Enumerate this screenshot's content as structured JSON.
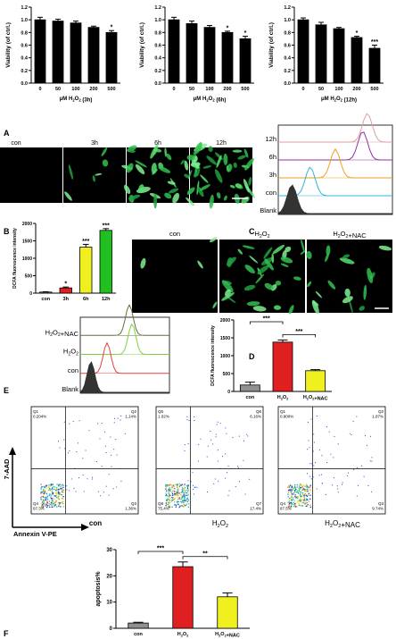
{
  "panel_labels": [
    "A",
    "B",
    "C",
    "D",
    "E",
    "F"
  ],
  "viability_charts": [
    {
      "ylabel": "Viability (of ctrl.)",
      "xlabel": "μM H2O2 (3h)",
      "categories": [
        "0",
        "50",
        "100",
        "200",
        "500"
      ],
      "values": [
        1.0,
        0.98,
        0.95,
        0.88,
        0.8
      ],
      "errors": [
        0.04,
        0.03,
        0.03,
        0.02,
        0.03
      ],
      "sig": [
        "",
        "",
        "",
        "",
        "*"
      ],
      "yticks": [
        "0.0",
        "0.2",
        "0.4",
        "0.6",
        "0.8",
        "1.0",
        "1.2"
      ],
      "ylim": [
        0,
        1.2
      ]
    },
    {
      "ylabel": "Viability (of ctrl.)",
      "xlabel": "μM H2O2 (6h)",
      "categories": [
        "0",
        "50",
        "100",
        "200",
        "500"
      ],
      "values": [
        1.0,
        0.94,
        0.88,
        0.8,
        0.7
      ],
      "errors": [
        0.04,
        0.04,
        0.03,
        0.02,
        0.04
      ],
      "sig": [
        "",
        "",
        "",
        "*",
        "*"
      ],
      "yticks": [
        "0.0",
        "0.2",
        "0.4",
        "0.6",
        "0.8",
        "1.0",
        "1.2"
      ],
      "ylim": [
        0,
        1.2
      ]
    },
    {
      "ylabel": "Viability (of ctrl.)",
      "xlabel": "μM H2O2 (12h)",
      "categories": [
        "0",
        "50",
        "100",
        "200",
        "500"
      ],
      "values": [
        1.0,
        0.92,
        0.86,
        0.72,
        0.55
      ],
      "errors": [
        0.03,
        0.04,
        0.02,
        0.02,
        0.05
      ],
      "sig": [
        "",
        "",
        "",
        "*",
        "***"
      ],
      "yticks": [
        "0.0",
        "0.2",
        "0.4",
        "0.6",
        "0.8",
        "1.0",
        "1.2"
      ],
      "ylim": [
        0,
        1.2
      ]
    }
  ],
  "micro_A": {
    "labels": [
      "con",
      "3h",
      "6h",
      "12h"
    ],
    "cells": [
      0,
      6,
      30,
      45
    ]
  },
  "flow_C": {
    "labels": [
      "12h",
      "6h",
      "3h",
      "con",
      "Blank"
    ],
    "colors": [
      "#d8a0a0",
      "#9030a0",
      "#e8a020",
      "#30b0e0",
      "#333333"
    ],
    "peaks": [
      0.78,
      0.74,
      0.5,
      0.28,
      0.12
    ]
  },
  "chart_B": {
    "ylabel": "DCFA fluorescence intensity",
    "categories": [
      "con",
      "3h",
      "6h",
      "12h"
    ],
    "values": [
      30,
      150,
      1320,
      1800
    ],
    "errors": [
      10,
      25,
      80,
      50
    ],
    "colors": [
      "#909090",
      "#e02020",
      "#f0f020",
      "#20c020"
    ],
    "sig": [
      "",
      "*",
      "***",
      "***"
    ],
    "yticks": [
      "0",
      "500",
      "1000",
      "1500",
      "2000"
    ],
    "ylim": [
      0,
      2000
    ]
  },
  "micro_D": {
    "labels": [
      "con",
      "H2O2",
      "H2O2+NAC"
    ],
    "cells": [
      4,
      34,
      18
    ]
  },
  "flow_E": {
    "labels": [
      "H2O2+NAC",
      "H2O2",
      "con",
      "Blank"
    ],
    "colors": [
      "#607030",
      "#80d040",
      "#e04040",
      "#333333"
    ],
    "peaks": [
      0.55,
      0.58,
      0.3,
      0.12
    ]
  },
  "chart_E": {
    "ylabel": "DCFA fluorescence intensity",
    "categories": [
      "con",
      "H2O2",
      "H2O2+NAC"
    ],
    "values": [
      180,
      1380,
      580
    ],
    "errors": [
      80,
      60,
      30
    ],
    "colors": [
      "#909090",
      "#e02020",
      "#f0f020"
    ],
    "brackets": [
      {
        "from": 0,
        "to": 1,
        "label": "***"
      },
      {
        "from": 1,
        "to": 2,
        "label": "***"
      }
    ],
    "yticks": [
      "0",
      "500",
      "1000",
      "1500",
      "2000"
    ],
    "ylim": [
      0,
      2000
    ]
  },
  "scatter_plots": [
    {
      "label": "con",
      "q": [
        "Q1\n0.204%",
        "Q2\n1.14%",
        "Q4\n97.3%",
        "Q3\n1.36%"
      ]
    },
    {
      "label": "H2O2",
      "q": [
        "Q5\n1.02%",
        "Q6\n6.16%",
        "Q8\n75.4%",
        "Q7\n17.4%"
      ]
    },
    {
      "label": "H2O2+NAC",
      "q": [
        "Q1\n0.900%",
        "Q2\n1.87%",
        "Q4\n87.5%",
        "Q3\n9.74%"
      ]
    }
  ],
  "scatter_axes": {
    "y": "7-AAD",
    "x": "Annexin V-PE"
  },
  "chart_F": {
    "ylabel": "apoptosis%",
    "categories": [
      "con",
      "H2O2",
      "H2O2+NAC"
    ],
    "values": [
      2,
      23.5,
      12
    ],
    "errors": [
      0.3,
      1.8,
      1.5
    ],
    "colors": [
      "#909090",
      "#e02020",
      "#f0f020"
    ],
    "brackets": [
      {
        "from": 0,
        "to": 1,
        "label": "***"
      },
      {
        "from": 1,
        "to": 2,
        "label": "**"
      }
    ],
    "yticks": [
      "0",
      "10",
      "20",
      "30"
    ],
    "ylim": [
      0,
      30
    ]
  }
}
